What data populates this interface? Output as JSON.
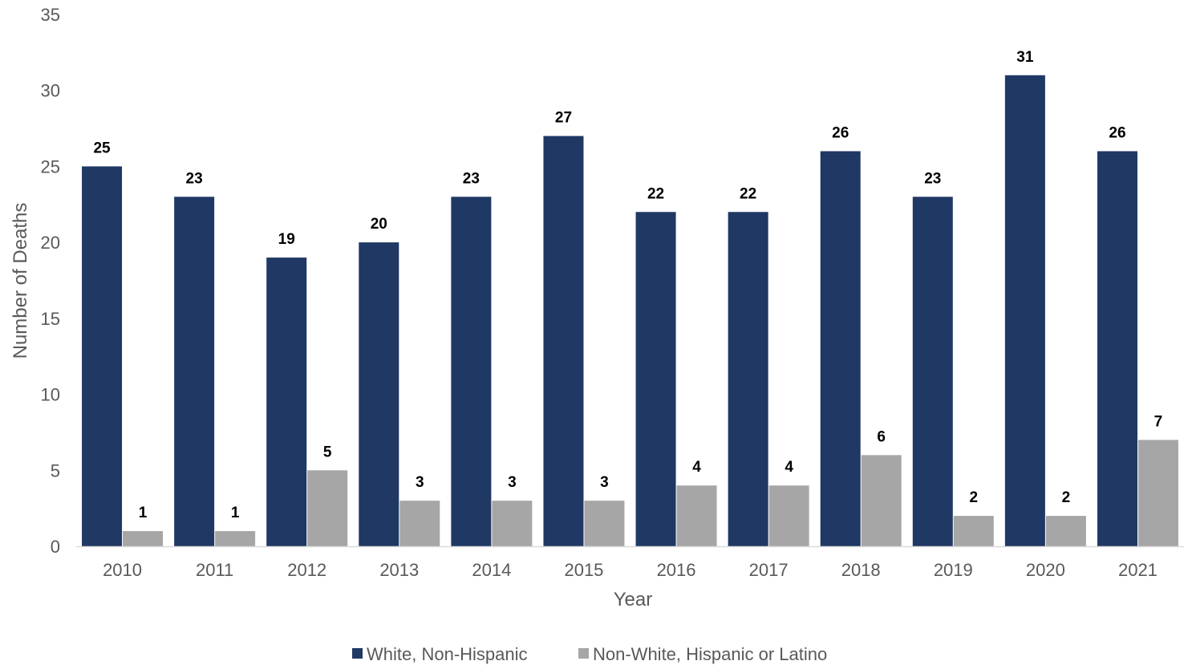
{
  "chart_data": {
    "type": "bar",
    "categories": [
      "2010",
      "2011",
      "2012",
      "2013",
      "2014",
      "2015",
      "2016",
      "2017",
      "2018",
      "2019",
      "2020",
      "2021"
    ],
    "series": [
      {
        "name": "White, Non-Hispanic",
        "color": "#1f3864",
        "values": [
          25,
          23,
          19,
          20,
          23,
          27,
          22,
          22,
          26,
          23,
          31,
          26
        ]
      },
      {
        "name": "Non-White, Hispanic or Latino",
        "color": "#a6a6a6",
        "values": [
          1,
          1,
          5,
          3,
          3,
          3,
          4,
          4,
          6,
          2,
          2,
          7
        ]
      }
    ],
    "xlabel": "Year",
    "ylabel": "Number of Deaths",
    "ylim": [
      0,
      35
    ],
    "yticks": [
      0,
      5,
      10,
      15,
      20,
      25,
      30,
      35
    ],
    "grid": false,
    "legend": "bottom-center",
    "data_labels": true
  }
}
